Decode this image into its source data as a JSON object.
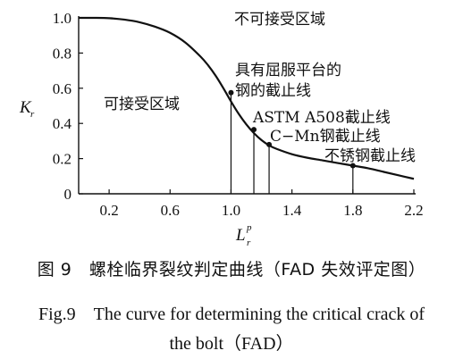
{
  "chart_data": {
    "type": "line",
    "title": "",
    "xlabel": "L",
    "xlabel_sup": "p",
    "xlabel_sub": "r",
    "ylabel": "K",
    "ylabel_sub": "r",
    "xlim": [
      0,
      2.2
    ],
    "ylim": [
      0,
      1.0
    ],
    "xticks": [
      0.2,
      0.6,
      1.0,
      1.4,
      1.8,
      2.2
    ],
    "xtick_labels": [
      "0.2",
      "0.6",
      "1.0",
      "1.4",
      "1.8",
      "2.2"
    ],
    "yticks": [
      0,
      0.2,
      0.4,
      0.6,
      0.8,
      1.0
    ],
    "ytick_labels": [
      "0",
      "0.2",
      "0.4",
      "0.6",
      "0.8",
      "1.0"
    ],
    "grid": false,
    "series": [
      {
        "x": [
          0.0,
          0.1,
          0.2,
          0.3,
          0.4,
          0.5,
          0.6,
          0.7,
          0.8,
          0.85,
          0.9,
          0.95,
          1.0,
          1.05,
          1.1,
          1.15,
          1.2,
          1.25,
          1.3,
          1.4,
          1.5,
          1.6,
          1.7,
          1.8,
          1.9,
          2.0,
          2.1,
          2.2
        ],
        "y": [
          1.0,
          1.0,
          0.998,
          0.99,
          0.975,
          0.95,
          0.915,
          0.86,
          0.78,
          0.73,
          0.67,
          0.6,
          0.525,
          0.455,
          0.395,
          0.345,
          0.305,
          0.275,
          0.255,
          0.225,
          0.205,
          0.19,
          0.175,
          0.16,
          0.145,
          0.125,
          0.105,
          0.085
        ]
      }
    ],
    "cutoffs": [
      {
        "x": 1.0,
        "y": 0.575
      },
      {
        "x": 1.15,
        "y": 0.365
      },
      {
        "x": 1.25,
        "y": 0.28
      },
      {
        "x": 1.8,
        "y": 0.16
      }
    ],
    "annotations": {
      "unacceptable_region": "不可接受区域",
      "acceptable_region": "可接受区域",
      "yield_plateau_line1": "具有屈服平台的",
      "yield_plateau_line2": "钢的截止线",
      "astm": "ASTM A508截止线",
      "cmn": "C−Mn钢截止线",
      "stainless": "不锈钢截止线"
    }
  },
  "caption": {
    "cn": "图 9　螺栓临界裂纹判定曲线（FAD 失效评定图）",
    "en_line1": "Fig.9　The curve for determining the critical crack of",
    "en_line2": "the bolt（FAD）"
  }
}
